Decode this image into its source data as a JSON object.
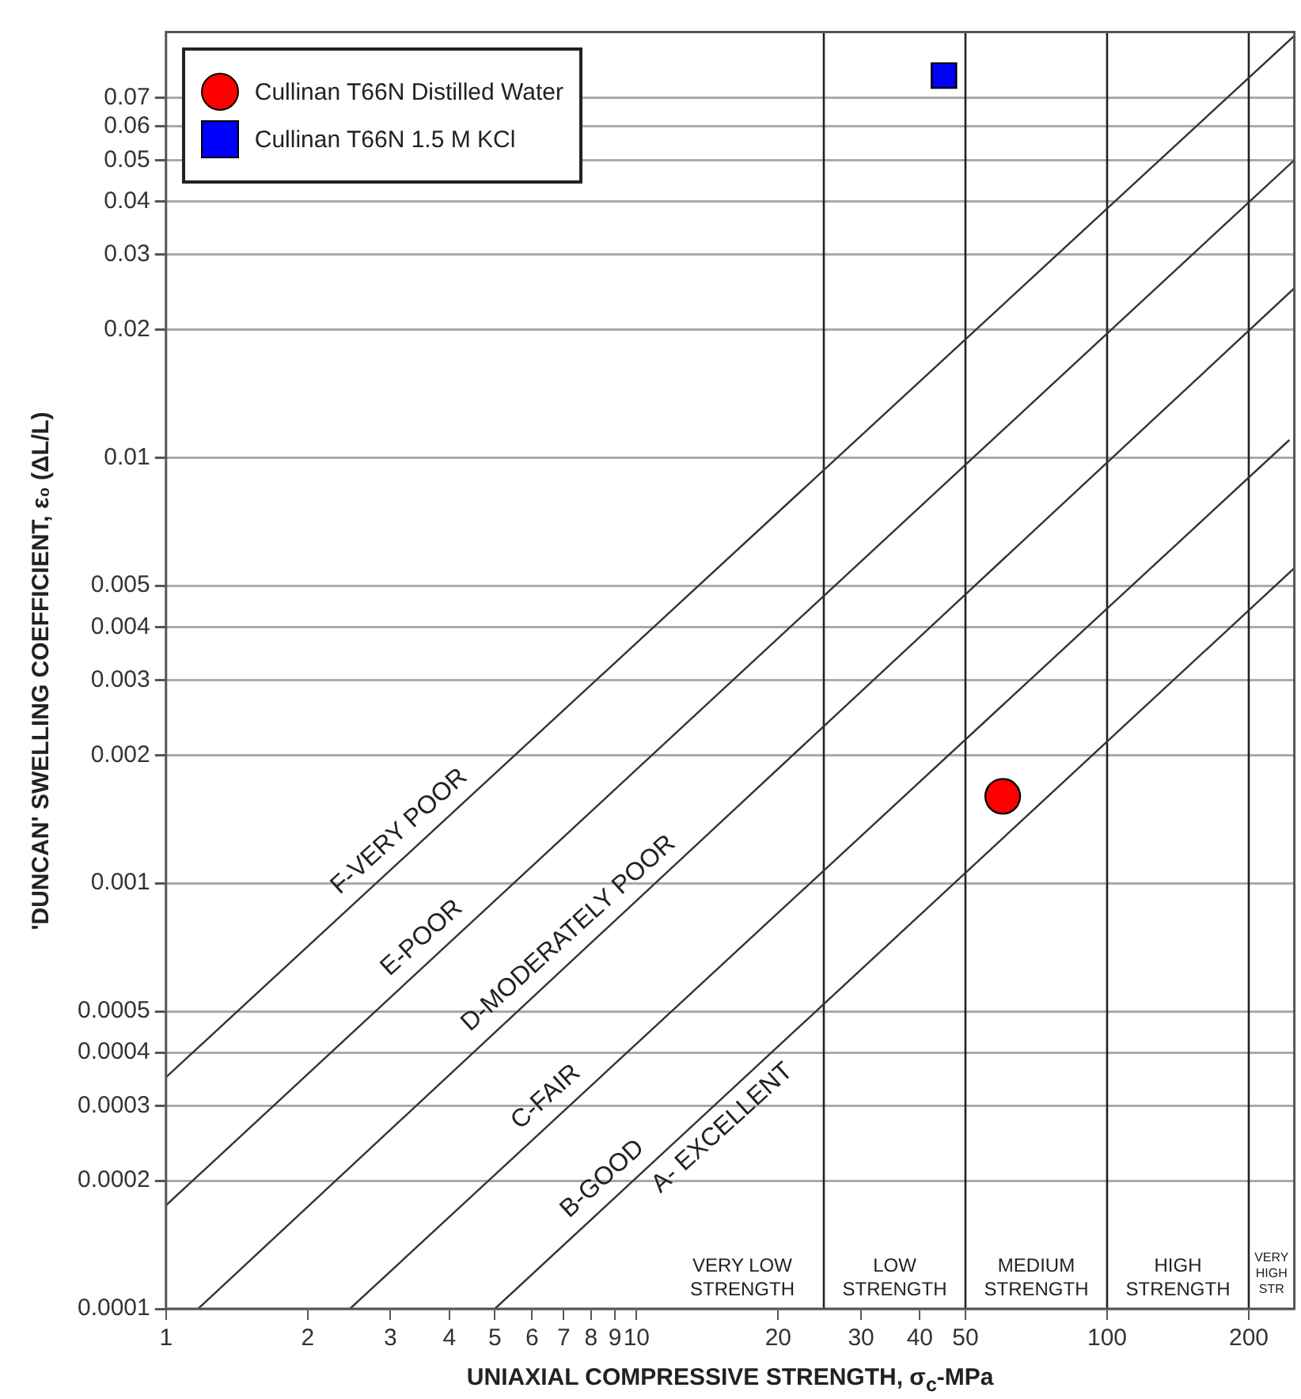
{
  "chart_data": {
    "type": "scatter",
    "xlabel": "UNIAXIAL COMPRESSIVE STRENGTH, σ$_{c}$-MPa",
    "ylabel": "'DUNCAN' SWELLING COEFFICIENT, ε₀ (ΔL/L)",
    "log": "xy",
    "grid": "y",
    "legend": "top left",
    "xlim": [
      1,
      250
    ],
    "ylim": [
      0.0001,
      0.1
    ],
    "xticks": [
      1,
      2,
      3,
      4,
      5,
      6,
      7,
      8,
      9,
      10,
      20,
      30,
      40,
      50,
      100,
      200
    ],
    "yticks": [
      0.0001,
      0.0002,
      0.0003,
      0.0004,
      0.0005,
      0.001,
      0.002,
      0.003,
      0.004,
      0.005,
      0.01,
      0.02,
      0.03,
      0.04,
      0.05,
      0.06,
      0.07
    ],
    "series": [
      {
        "name": "Cullinan T66N Distilled Water",
        "color": "#ff0000",
        "marker": "circle",
        "x": [
          60
        ],
        "values": [
          0.0016
        ]
      },
      {
        "name": "Cullinan T66N 1.5 M KCl",
        "color": "#0000ff",
        "marker": "square",
        "x": [
          45
        ],
        "values": [
          0.079
        ]
      },
      {
        "type": "line",
        "color": "#333333",
        "marker": "none",
        "x": [
          1,
          250
        ],
        "values": [
          0.00035,
          0.098
        ]
      },
      {
        "type": "line",
        "color": "#333333",
        "marker": "none",
        "x": [
          1,
          250
        ],
        "values": [
          0.000175,
          0.05
        ]
      },
      {
        "type": "line",
        "color": "#333333",
        "marker": "none",
        "x": [
          1.17,
          250
        ],
        "values": [
          0.0001,
          0.025
        ]
      },
      {
        "type": "line",
        "color": "#333333",
        "marker": "none",
        "x": [
          2.46,
          244
        ],
        "values": [
          0.0001,
          0.011
        ]
      },
      {
        "type": "line",
        "color": "#333333",
        "marker": "none",
        "x": [
          5,
          250
        ],
        "values": [
          0.0001,
          0.0055
        ]
      }
    ],
    "ref_lines": [
      {
        "axis": "x",
        "value": 25,
        "color": "#222222"
      },
      {
        "axis": "x",
        "value": 50,
        "color": "#222222"
      },
      {
        "axis": "x",
        "value": 100,
        "color": "#222222"
      },
      {
        "axis": "x",
        "value": 200,
        "color": "#222222"
      }
    ],
    "annotations": [
      "F-VERY POOR",
      "E-POOR",
      "D-MODERATELY POOR",
      "C-FAIR",
      "B-GOOD",
      "A- EXCELLENT",
      "VERY LOW STRENGTH",
      "LOW STRENGTH",
      "MEDIUM STRENGTH",
      "HIGH STRENGTH",
      "VERY HIGH STR"
    ]
  }
}
